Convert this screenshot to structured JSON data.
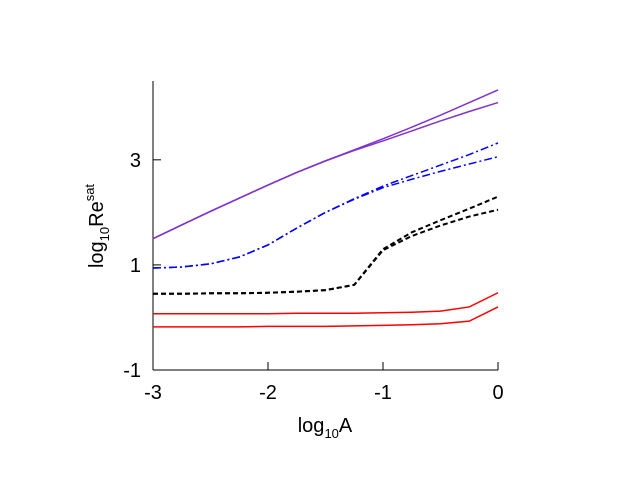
{
  "chart_data": {
    "type": "line",
    "x_label": {
      "base": "log",
      "sub": "10",
      "main": "A"
    },
    "y_label": {
      "base": "log",
      "sub": "10",
      "main": "Re",
      "sup": "sat"
    },
    "x": [
      -3,
      -2.75,
      -2.5,
      -2.25,
      -2,
      -1.75,
      -1.5,
      -1.25,
      -1,
      -0.75,
      -0.5,
      -0.25,
      0
    ],
    "xlim": [
      -3,
      0
    ],
    "xticks": [
      -3,
      -2,
      -1,
      0
    ],
    "ylim": [
      -1,
      4.5
    ],
    "yticks": [
      -1,
      1,
      3
    ],
    "series": [
      {
        "color": "#8033cc",
        "dash": "solid",
        "values": [
          1.5,
          1.76,
          2.02,
          2.27,
          2.52,
          2.76,
          2.98,
          3.19,
          3.4,
          3.62,
          3.85,
          4.09,
          4.33
        ]
      },
      {
        "color": "#8033cc",
        "dash": "solid",
        "values": [
          1.5,
          1.76,
          2.02,
          2.27,
          2.52,
          2.76,
          2.98,
          3.18,
          3.36,
          3.55,
          3.74,
          3.92,
          4.09
        ]
      },
      {
        "color": "#0000ff",
        "dash": "dashdot",
        "values": [
          0.94,
          0.96,
          1.02,
          1.15,
          1.38,
          1.7,
          2.0,
          2.26,
          2.5,
          2.7,
          2.9,
          3.1,
          3.32
        ]
      },
      {
        "color": "#0000ff",
        "dash": "dashdot",
        "values": [
          0.94,
          0.96,
          1.02,
          1.15,
          1.38,
          1.7,
          2.0,
          2.25,
          2.47,
          2.63,
          2.78,
          2.92,
          3.06
        ]
      },
      {
        "color": "#000000",
        "dash": "dashed",
        "values": [
          0.45,
          0.45,
          0.46,
          0.46,
          0.47,
          0.49,
          0.52,
          0.62,
          1.3,
          1.62,
          1.85,
          2.07,
          2.3
        ]
      },
      {
        "color": "#000000",
        "dash": "dashed",
        "values": [
          0.45,
          0.45,
          0.46,
          0.46,
          0.47,
          0.49,
          0.52,
          0.62,
          1.28,
          1.55,
          1.75,
          1.92,
          2.05
        ]
      },
      {
        "color": "#ff0000",
        "dash": "solid",
        "values": [
          0.07,
          0.07,
          0.07,
          0.07,
          0.07,
          0.08,
          0.08,
          0.08,
          0.09,
          0.1,
          0.12,
          0.2,
          0.47
        ]
      },
      {
        "color": "#ff0000",
        "dash": "solid",
        "values": [
          -0.18,
          -0.18,
          -0.18,
          -0.18,
          -0.17,
          -0.17,
          -0.17,
          -0.16,
          -0.15,
          -0.14,
          -0.12,
          -0.07,
          0.2
        ]
      }
    ]
  }
}
